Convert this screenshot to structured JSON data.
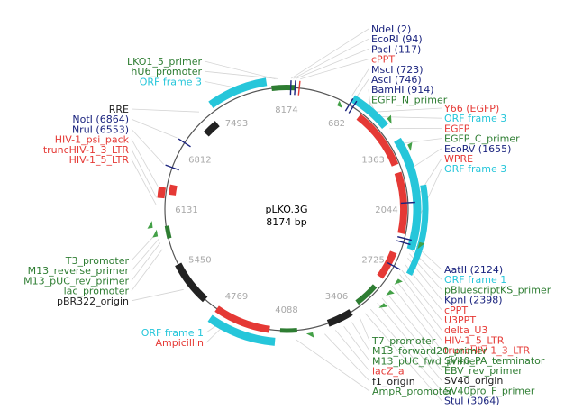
{
  "plasmid": {
    "name": "pLKO.3G",
    "size": "8174 bp"
  },
  "colors": {
    "navy": "#1a237e",
    "red": "#e53935",
    "green": "#2e7d32",
    "cyan": "#26c6da",
    "black": "#222222",
    "grey": "#555555",
    "lightgreen": "#43a047"
  },
  "ticks": [
    "8174",
    "682",
    "1363",
    "2044",
    "2725",
    "3406",
    "4088",
    "4769",
    "5450",
    "6131",
    "6812",
    "7493"
  ],
  "labels": {
    "top_right": [
      {
        "text": "NdeI (2)",
        "color": "navy"
      },
      {
        "text": "EcoRI (94)",
        "color": "navy"
      },
      {
        "text": "PacI (117)",
        "color": "navy"
      },
      {
        "text": "cPPT",
        "color": "red"
      },
      {
        "text": "MscI (723)",
        "color": "navy"
      },
      {
        "text": "AscI (746)",
        "color": "navy"
      },
      {
        "text": "BamHI (914)",
        "color": "navy"
      },
      {
        "text": "EGFP_N_primer",
        "color": "green"
      }
    ],
    "top_left": [
      {
        "text": "LKO1_5_primer",
        "color": "green"
      },
      {
        "text": "hU6_promoter",
        "color": "green"
      },
      {
        "text": "ORF frame 3",
        "color": "cyan"
      }
    ],
    "mid_left": [
      {
        "text": "RRE",
        "color": "black"
      },
      {
        "text": "NotI (6864)",
        "color": "navy"
      },
      {
        "text": "NruI (6553)",
        "color": "navy"
      },
      {
        "text": "HIV-1_psi_pack",
        "color": "red"
      },
      {
        "text": "truncHIV-1_3_LTR",
        "color": "red"
      },
      {
        "text": "HIV-1_5_LTR",
        "color": "red"
      }
    ],
    "right_mid": [
      {
        "text": "Y66 (EGFP)",
        "color": "red"
      },
      {
        "text": "ORF frame 3",
        "color": "cyan"
      },
      {
        "text": "EGFP",
        "color": "red"
      },
      {
        "text": "EGFP_C_primer",
        "color": "green"
      },
      {
        "text": "EcoRV (1655)",
        "color": "navy"
      },
      {
        "text": "WPRE",
        "color": "red"
      },
      {
        "text": "ORF frame 3",
        "color": "cyan"
      }
    ],
    "left_low": [
      {
        "text": "T3_promoter",
        "color": "green"
      },
      {
        "text": "M13_reverse_primer",
        "color": "green"
      },
      {
        "text": "M13_pUC_rev_primer",
        "color": "green"
      },
      {
        "text": "lac_promoter",
        "color": "green"
      },
      {
        "text": "pBR322_origin",
        "color": "black"
      }
    ],
    "bottom_left": [
      {
        "text": "ORF frame 1",
        "color": "cyan"
      },
      {
        "text": "Ampicillin",
        "color": "red"
      }
    ],
    "right_low": [
      {
        "text": "AatII (2124)",
        "color": "navy"
      },
      {
        "text": "ORF frame 1",
        "color": "cyan"
      },
      {
        "text": "pBluescriptKS_primer",
        "color": "green"
      },
      {
        "text": "KpnI (2398)",
        "color": "navy"
      },
      {
        "text": "cPPT",
        "color": "red"
      },
      {
        "text": "U3PPT",
        "color": "red"
      },
      {
        "text": "delta_U3",
        "color": "red"
      },
      {
        "text": "HIV-1_5_LTR",
        "color": "red"
      },
      {
        "text": "truncHIV-1_3_LTR",
        "color": "red"
      },
      {
        "text": "SV40_PA_terminator",
        "color": "green"
      },
      {
        "text": "EBV_rev_primer",
        "color": "green"
      },
      {
        "text": "SV40_origin",
        "color": "black"
      },
      {
        "text": "SV40pro_F_primer",
        "color": "green"
      },
      {
        "text": "StuI (3064)",
        "color": "navy"
      }
    ],
    "bottom_mid": [
      {
        "text": "T7_promoter",
        "color": "green"
      },
      {
        "text": "M13_forward20_primer",
        "color": "green"
      },
      {
        "text": "M13_pUC_fwd_primer",
        "color": "green"
      },
      {
        "text": "lacZ_a",
        "color": "red"
      },
      {
        "text": "f1_origin",
        "color": "black"
      },
      {
        "text": "AmpR_promoter",
        "color": "green"
      }
    ]
  }
}
